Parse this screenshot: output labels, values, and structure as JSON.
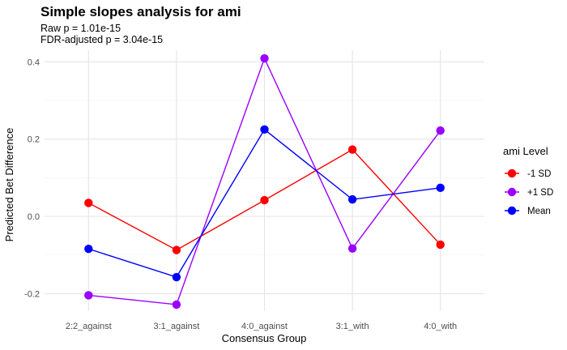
{
  "chart_data": {
    "type": "line",
    "title": "Simple slopes analysis for ami",
    "subtitle_lines": [
      "Raw p = 1.01e-15",
      "FDR-adjusted p = 3.04e-15"
    ],
    "xlabel": "Consensus Group",
    "ylabel": "Predicted Bet Difference",
    "categories": [
      "2:2_against",
      "3:1_against",
      "4:0_against",
      "3:1_with",
      "4:0_with"
    ],
    "ylim": [
      -0.245,
      0.43
    ],
    "yticks": [
      -0.2,
      0.0,
      0.2,
      0.4
    ],
    "ytick_labels": [
      "-0.2",
      "0.0",
      "0.2",
      "0.4"
    ],
    "grid": true,
    "legend": {
      "title": "ami Level",
      "position": "right"
    },
    "series": [
      {
        "name": "-1 SD",
        "color": "#ff0000",
        "values": [
          0.035,
          -0.087,
          0.042,
          0.173,
          -0.073
        ]
      },
      {
        "name": "+1 SD",
        "color": "#9a00ff",
        "values": [
          -0.204,
          -0.228,
          0.409,
          -0.083,
          0.222
        ]
      },
      {
        "name": "Mean",
        "color": "#0000ff",
        "values": [
          -0.084,
          -0.157,
          0.225,
          0.044,
          0.074
        ]
      }
    ]
  }
}
